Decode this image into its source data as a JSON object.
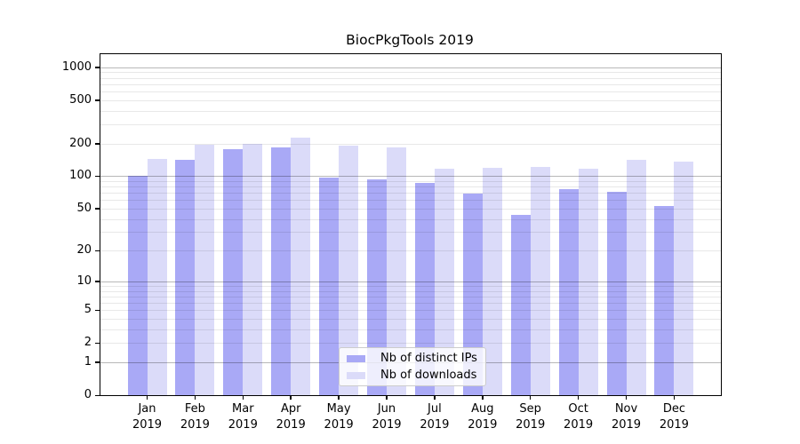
{
  "title": "BiocPkgTools 2019",
  "chart_data": {
    "type": "bar",
    "title": "BiocPkgTools 2019",
    "categories": [
      "Jan",
      "Feb",
      "Mar",
      "Apr",
      "May",
      "Jun",
      "Jul",
      "Aug",
      "Sep",
      "Oct",
      "Nov",
      "Dec"
    ],
    "x_year": "2019",
    "series": [
      {
        "name": "Nb of distinct IPs",
        "color": "#a9a9f6",
        "values": [
          100,
          142,
          177,
          185,
          97,
          94,
          86,
          69,
          44,
          76,
          71,
          53
        ]
      },
      {
        "name": "Nb of downloads",
        "color": "#dbdbf9",
        "values": [
          144,
          193,
          200,
          225,
          192,
          184,
          118,
          120,
          122,
          118,
          142,
          137
        ]
      }
    ],
    "y_scale": "log1p",
    "ylim": [
      0,
      1318
    ],
    "y_tick_labels": [
      "0",
      "1",
      "2",
      "5",
      "10",
      "20",
      "50",
      "100",
      "200",
      "500",
      "1000"
    ],
    "y_ticks": [
      0,
      1,
      2,
      5,
      10,
      20,
      50,
      100,
      200,
      500,
      1000
    ],
    "y_minor_gridlines": [
      2,
      3,
      4,
      5,
      6,
      7,
      8,
      9,
      20,
      30,
      40,
      50,
      60,
      70,
      80,
      90,
      200,
      300,
      400,
      500,
      600,
      700,
      800,
      900
    ],
    "y_major_gridlines": [
      1,
      10,
      100,
      1000
    ],
    "grid": "horizontal major+minor, drawn over bars",
    "legend_position": "lower center inside plot",
    "xlabel": "",
    "ylabel": ""
  },
  "colors": {
    "series_dark": "#a9a9f6",
    "series_light": "#dbdbf9",
    "grid_major": "rgba(0,0,0,0.28)",
    "grid_minor": "rgba(0,0,0,0.09)",
    "spine": "#000000",
    "background": "#ffffff"
  },
  "legend": {
    "items": [
      {
        "label": "Nb of distinct IPs"
      },
      {
        "label": "Nb of downloads"
      }
    ]
  }
}
